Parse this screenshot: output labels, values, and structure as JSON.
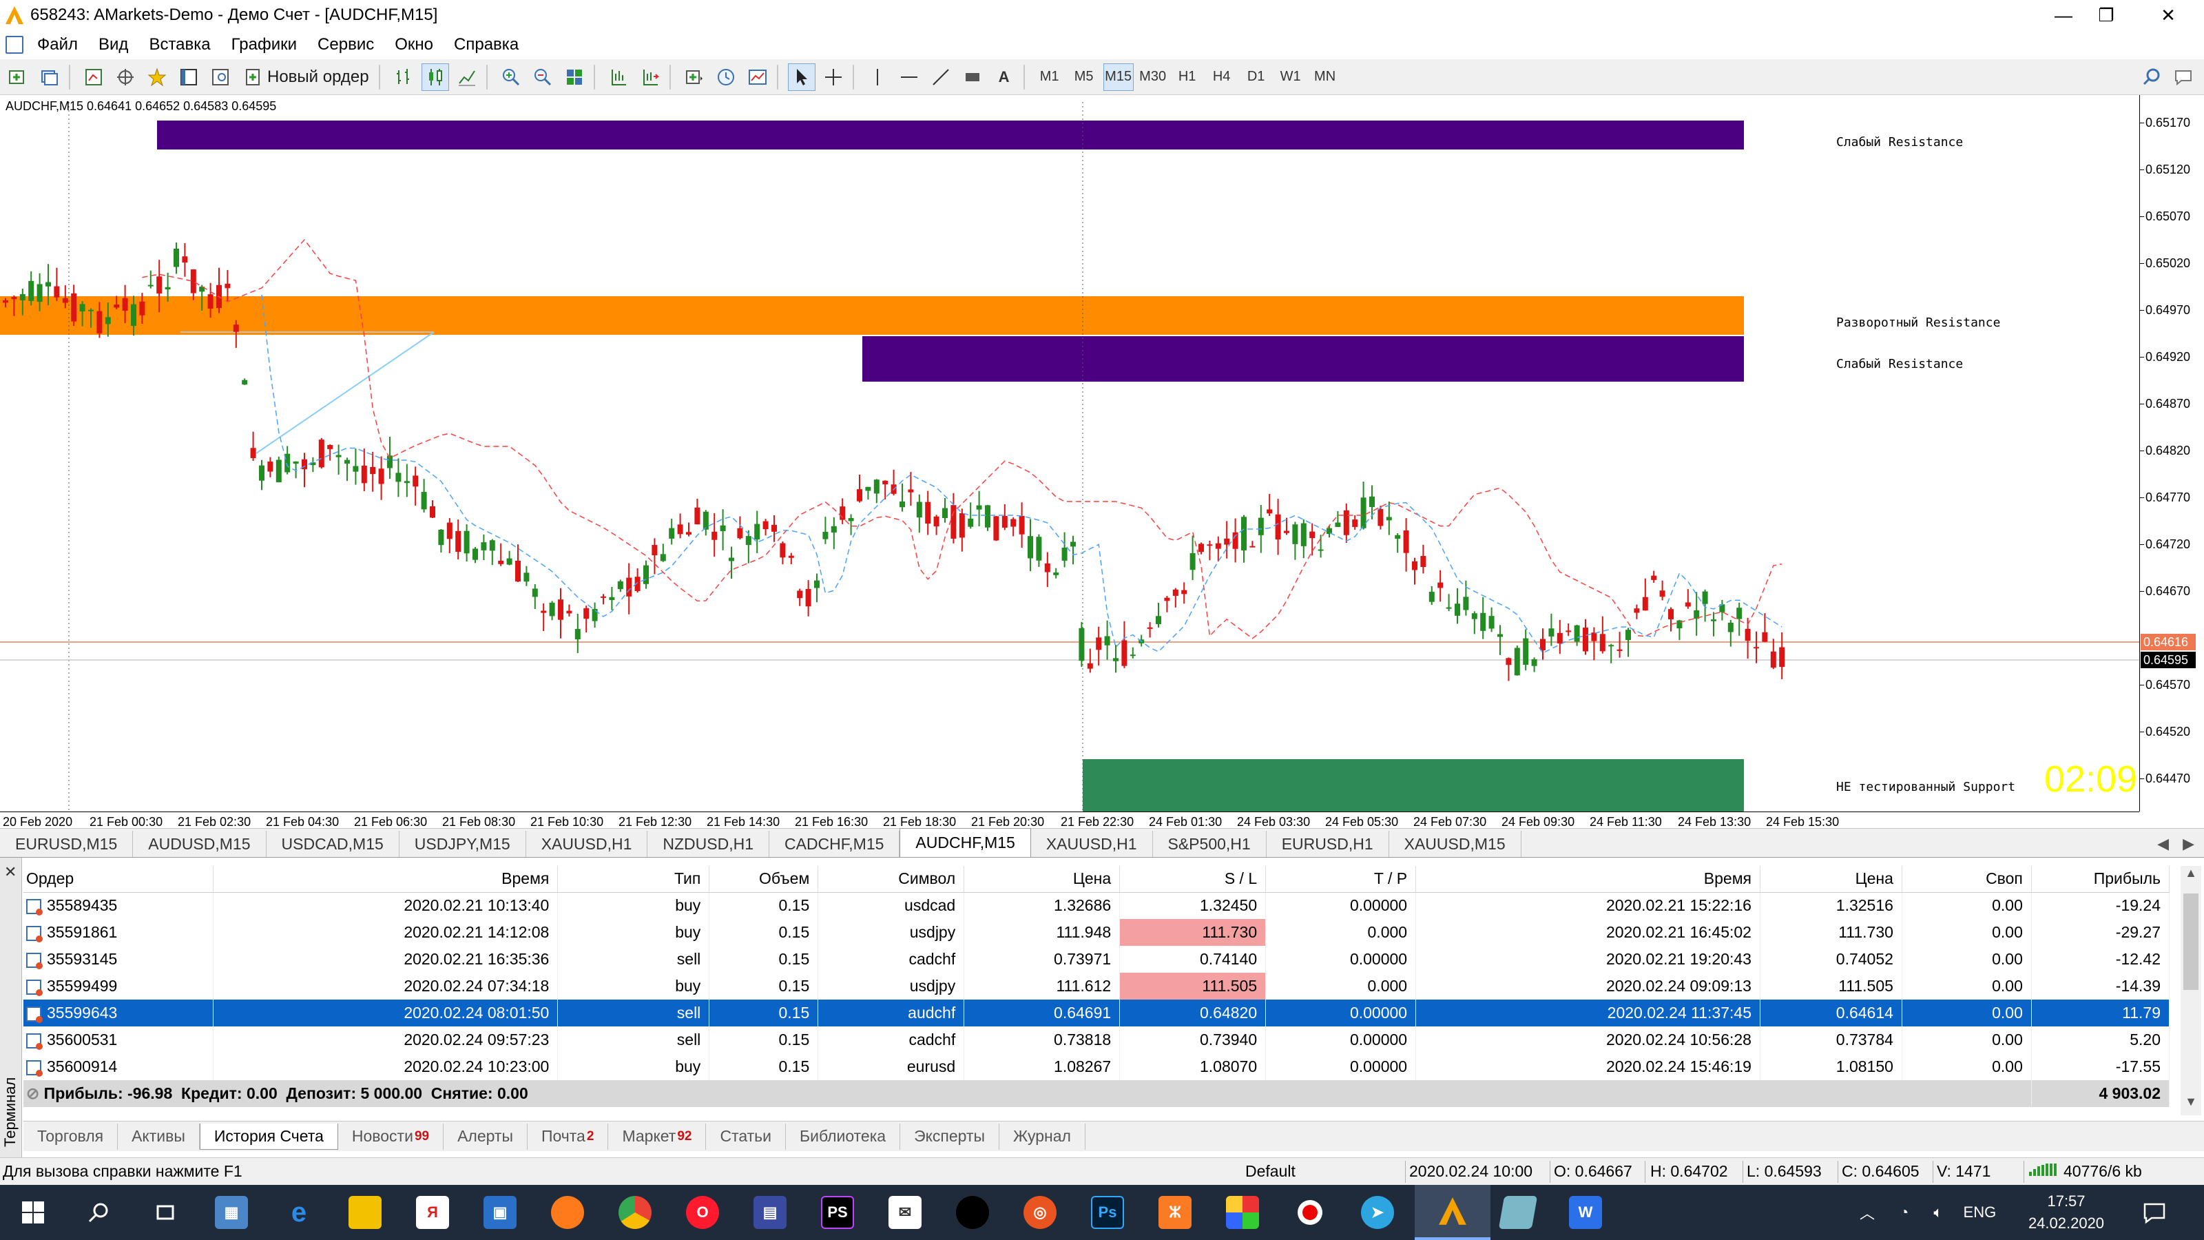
{
  "window": {
    "title": "658243: AMarkets-Demo - Демо Счет - [AUDCHF,M15]",
    "controls": {
      "minimize": "—",
      "maximize": "❐",
      "close": "✕"
    }
  },
  "menu": [
    "Файл",
    "Вид",
    "Вставка",
    "Графики",
    "Сервис",
    "Окно",
    "Справка"
  ],
  "toolbar": {
    "new_order_label": "Новый ордер",
    "timeframes": [
      "M1",
      "M5",
      "M15",
      "M30",
      "H1",
      "H4",
      "D1",
      "W1",
      "MN"
    ],
    "active_timeframe": "M15"
  },
  "chart": {
    "info": "AUDCHF,M15  0.64641 0.64652 0.64583 0.64595",
    "price_labels": [
      "0.65170",
      "0.65120",
      "0.65070",
      "0.65020",
      "0.64970",
      "0.64920",
      "0.64870",
      "0.64820",
      "0.64770",
      "0.64720",
      "0.64670",
      "0.64616",
      "0.64595",
      "0.64570",
      "0.64520",
      "0.64470"
    ],
    "time_labels": [
      "20 Feb 2020",
      "21 Feb 00:30",
      "21 Feb 02:30",
      "21 Feb 04:30",
      "21 Feb 06:30",
      "21 Feb 08:30",
      "21 Feb 10:30",
      "21 Feb 12:30",
      "21 Feb 14:30",
      "21 Feb 16:30",
      "21 Feb 18:30",
      "21 Feb 20:30",
      "21 Feb 22:30",
      "24 Feb 01:30",
      "24 Feb 03:30",
      "24 Feb 05:30",
      "24 Feb 07:30",
      "24 Feb 09:30",
      "24 Feb 11:30",
      "24 Feb 13:30",
      "24 Feb 15:30"
    ],
    "zone_labels": {
      "weak_resistance_top": "Слабый Resistance",
      "reversal_resistance": "Разворотный Resistance",
      "weak_resistance_mid": "Слабый Resistance",
      "untested_support": "НЕ тестированный Support"
    },
    "timer": "02:09",
    "current_price_tag": "0.64616",
    "last_price_tag": "0.64595",
    "colors": {
      "zone_purple": "#4b0082",
      "zone_orange": "#ff8c00",
      "zone_green": "#2e8b57",
      "bull": "#228b22",
      "bear": "#dc1414"
    }
  },
  "chart_tabs": {
    "items": [
      "EURUSD,M15",
      "AUDUSD,M15",
      "USDCAD,M15",
      "USDJPY,M15",
      "XAUUSD,H1",
      "NZDUSD,H1",
      "CADCHF,M15",
      "AUDCHF,M15",
      "XAUUSD,H1",
      "S&P500,H1",
      "EURUSD,H1",
      "XAUUSD,M15"
    ],
    "active_index": 7
  },
  "terminal": {
    "side_label": "Терминал",
    "columns": [
      "Ордер",
      "Время",
      "Тип",
      "Объем",
      "Символ",
      "Цена",
      "S / L",
      "T / P",
      "Время",
      "Цена",
      "Своп",
      "Прибыль"
    ],
    "rows": [
      [
        "35589435",
        "2020.02.21 10:13:40",
        "buy",
        "0.15",
        "usdcad",
        "1.32686",
        "1.32450",
        "0.00000",
        "2020.02.21 15:22:16",
        "1.32516",
        "0.00",
        "-19.24"
      ],
      [
        "35591861",
        "2020.02.21 14:12:08",
        "buy",
        "0.15",
        "usdjpy",
        "111.948",
        "111.730",
        "0.000",
        "2020.02.21 16:45:02",
        "111.730",
        "0.00",
        "-29.27"
      ],
      [
        "35593145",
        "2020.02.21 16:35:36",
        "sell",
        "0.15",
        "cadchf",
        "0.73971",
        "0.74140",
        "0.00000",
        "2020.02.21 19:20:43",
        "0.74052",
        "0.00",
        "-12.42"
      ],
      [
        "35599499",
        "2020.02.24 07:34:18",
        "buy",
        "0.15",
        "usdjpy",
        "111.612",
        "111.505",
        "0.000",
        "2020.02.24 09:09:13",
        "111.505",
        "0.00",
        "-14.39"
      ],
      [
        "35599643",
        "2020.02.24 08:01:50",
        "sell",
        "0.15",
        "audchf",
        "0.64691",
        "0.64820",
        "0.00000",
        "2020.02.24 11:37:45",
        "0.64614",
        "0.00",
        "11.79"
      ],
      [
        "35600531",
        "2020.02.24 09:57:23",
        "sell",
        "0.15",
        "cadchf",
        "0.73818",
        "0.73940",
        "0.00000",
        "2020.02.24 10:56:28",
        "0.73784",
        "0.00",
        "5.20"
      ],
      [
        "35600914",
        "2020.02.24 10:23:00",
        "buy",
        "0.15",
        "eurusd",
        "1.08267",
        "1.08070",
        "0.00000",
        "2020.02.24 15:46:19",
        "1.08150",
        "0.00",
        "-17.55"
      ]
    ],
    "selected_row": 4,
    "sl_hit_rows": [
      1,
      3
    ],
    "summary": "Прибыль: -96.98  Кредит: 0.00  Депозит: 5 000.00  Снятие: 0.00",
    "summary_total": "4 903.02",
    "tabs": [
      {
        "label": "Торговля",
        "count": ""
      },
      {
        "label": "Активы",
        "count": ""
      },
      {
        "label": "История Счета",
        "count": ""
      },
      {
        "label": "Новости",
        "count": "99"
      },
      {
        "label": "Алерты",
        "count": ""
      },
      {
        "label": "Почта",
        "count": "2"
      },
      {
        "label": "Маркет",
        "count": "92"
      },
      {
        "label": "Статьи",
        "count": ""
      },
      {
        "label": "Библиотека",
        "count": ""
      },
      {
        "label": "Эксперты",
        "count": ""
      },
      {
        "label": "Журнал",
        "count": ""
      }
    ],
    "active_tab": 2
  },
  "status": {
    "help": "Для вызова справки нажмите F1",
    "profile": "Default",
    "datetime": "2020.02.24 10:00",
    "open": "O: 0.64667",
    "high": "H: 0.64702",
    "low": "L: 0.64593",
    "close": "C: 0.64605",
    "volume": "V: 1471",
    "traffic": "40776/6 kb"
  },
  "taskbar": {
    "language": "ENG",
    "time": "17:57",
    "date": "24.02.2020",
    "apps": [
      "start-icon",
      "search-icon",
      "task-view-icon",
      "calculator-icon",
      "edge-icon",
      "explorer-icon",
      "yandex-icon",
      "store-icon",
      "firefox-icon",
      "chrome-icon",
      "opera-icon",
      "floppy-icon",
      "phpstorm-icon",
      "mail-icon",
      "dark-app-icon",
      "ubuntu-icon",
      "photoshop-icon",
      "xampp-icon",
      "windows-color-icon",
      "recorder-icon",
      "telegram-icon",
      "amarkets-icon",
      "notes-icon",
      "wps-icon"
    ]
  }
}
